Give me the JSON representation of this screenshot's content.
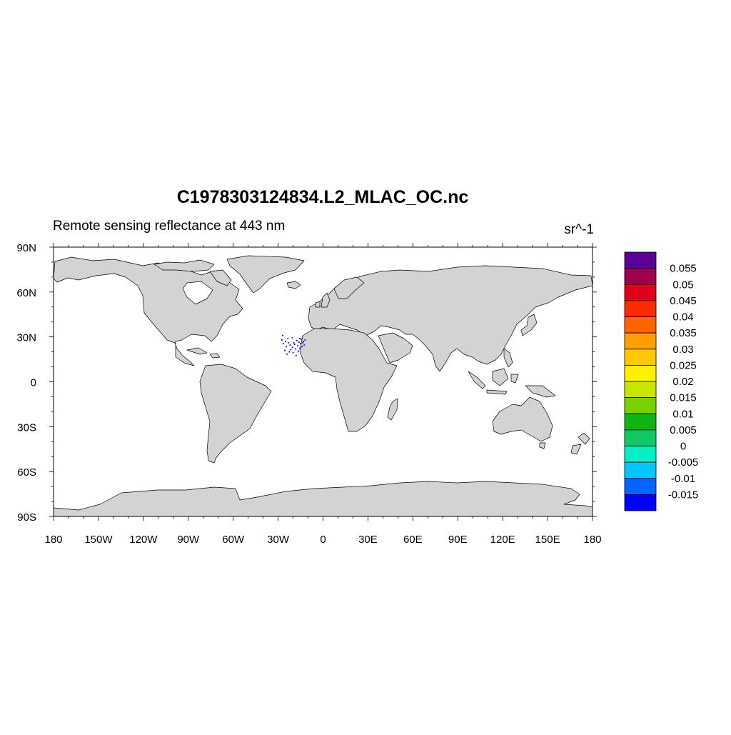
{
  "title": "C1978303124834.L2_MLAC_OC.nc",
  "subtitle_left": "Remote sensing reflectance at 443 nm",
  "units": "sr^-1",
  "colors": {
    "land": "#d3d3d3",
    "coastline": "#000000",
    "data_points": "#0000ff"
  },
  "lat_labels": [
    "90N",
    "60N",
    "30N",
    "0",
    "30S",
    "60S",
    "90S"
  ],
  "lon_labels": [
    "180",
    "150W",
    "120W",
    "90W",
    "60W",
    "30W",
    "0",
    "30E",
    "60E",
    "90E",
    "120E",
    "150E",
    "180"
  ],
  "colorbar": {
    "labels": [
      "0.055",
      "0.05",
      "0.045",
      "0.04",
      "0.035",
      "0.03",
      "0.025",
      "0.02",
      "0.015",
      "0.01",
      "0.005",
      "0",
      "-0.005",
      "-0.01",
      "-0.015"
    ],
    "colors": [
      "#5a0096",
      "#a0004e",
      "#e0001e",
      "#ff2a00",
      "#ff6400",
      "#ffa000",
      "#ffc800",
      "#fff000",
      "#c8e600",
      "#78d200",
      "#10b414",
      "#10c864",
      "#00f0c8",
      "#00c8ff",
      "#0064ff",
      "#0000ff"
    ]
  },
  "chart_data": {
    "type": "scatter",
    "projection": "cylindrical-equidistant",
    "xlim": [
      -180,
      180
    ],
    "ylim": [
      -90,
      90
    ],
    "x_ticks": [
      -180,
      -150,
      -120,
      -90,
      -60,
      -30,
      0,
      30,
      60,
      90,
      120,
      150,
      180
    ],
    "y_ticks": [
      90,
      60,
      30,
      0,
      -30,
      -60,
      -90
    ],
    "variable": "Remote sensing reflectance at 443 nm",
    "units": "sr^-1",
    "points": [
      {
        "lon": -27.5,
        "lat": 28.0
      },
      {
        "lon": -26.5,
        "lat": 25.5
      },
      {
        "lon": -25.0,
        "lat": 27.0
      },
      {
        "lon": -24.5,
        "lat": 23.5
      },
      {
        "lon": -23.0,
        "lat": 26.0
      },
      {
        "lon": -22.0,
        "lat": 24.5
      },
      {
        "lon": -21.5,
        "lat": 21.5
      },
      {
        "lon": -20.5,
        "lat": 23.0
      },
      {
        "lon": -20.0,
        "lat": 19.5
      },
      {
        "lon": -19.0,
        "lat": 25.0
      },
      {
        "lon": -18.5,
        "lat": 22.0
      },
      {
        "lon": -18.0,
        "lat": 17.5
      },
      {
        "lon": -17.5,
        "lat": 27.5
      },
      {
        "lon": -17.0,
        "lat": 24.0
      },
      {
        "lon": -16.5,
        "lat": 20.5
      },
      {
        "lon": -16.0,
        "lat": 26.5
      },
      {
        "lon": -15.5,
        "lat": 22.5
      },
      {
        "lon": -15.0,
        "lat": 25.5
      },
      {
        "lon": -14.5,
        "lat": 28.5
      },
      {
        "lon": -14.0,
        "lat": 23.5
      },
      {
        "lon": -13.5,
        "lat": 26.0
      },
      {
        "lon": -13.0,
        "lat": 27.0
      },
      {
        "lon": -12.5,
        "lat": 24.5
      },
      {
        "lon": -12.0,
        "lat": 28.0
      },
      {
        "lon": -19.5,
        "lat": 26.0
      },
      {
        "lon": -22.5,
        "lat": 20.0
      },
      {
        "lon": -24.0,
        "lat": 18.5
      },
      {
        "lon": -25.5,
        "lat": 21.0
      },
      {
        "lon": -27.0,
        "lat": 31.0
      },
      {
        "lon": -15.5,
        "lat": 29.0
      },
      {
        "lon": -23.5,
        "lat": 29.0
      },
      {
        "lon": -20.5,
        "lat": 29.5
      }
    ]
  }
}
